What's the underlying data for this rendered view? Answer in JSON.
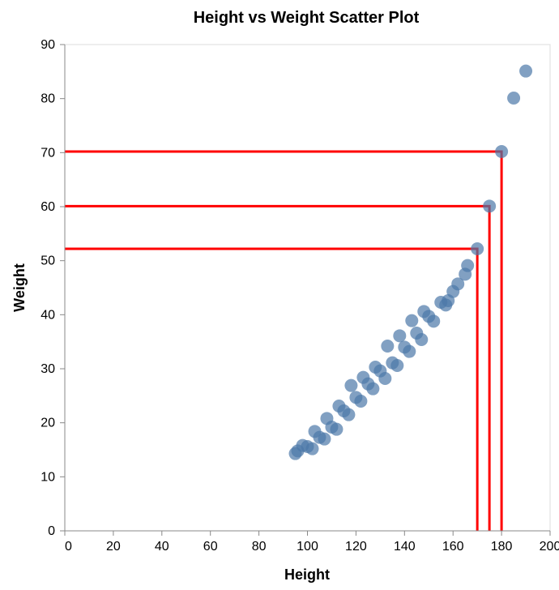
{
  "chart_data": {
    "type": "scatter",
    "title": "Height vs Weight Scatter Plot",
    "xlabel": "Height",
    "ylabel": "Weight",
    "xlim": [
      0,
      200
    ],
    "ylim": [
      0,
      90
    ],
    "xticks": [
      0,
      20,
      40,
      60,
      80,
      100,
      120,
      140,
      160,
      180,
      200
    ],
    "yticks": [
      0,
      10,
      20,
      30,
      40,
      50,
      60,
      70,
      80,
      90
    ],
    "grid": false,
    "color": "#4c78a8",
    "points": [
      {
        "x": 95,
        "y": 14.3
      },
      {
        "x": 96,
        "y": 14.8
      },
      {
        "x": 98,
        "y": 15.8
      },
      {
        "x": 100,
        "y": 15.6
      },
      {
        "x": 102,
        "y": 15.2
      },
      {
        "x": 103,
        "y": 18.4
      },
      {
        "x": 105,
        "y": 17.3
      },
      {
        "x": 107,
        "y": 17.0
      },
      {
        "x": 108,
        "y": 20.8
      },
      {
        "x": 110,
        "y": 19.2
      },
      {
        "x": 112,
        "y": 18.8
      },
      {
        "x": 113,
        "y": 23.1
      },
      {
        "x": 115,
        "y": 22.2
      },
      {
        "x": 117,
        "y": 21.5
      },
      {
        "x": 118,
        "y": 26.9
      },
      {
        "x": 120,
        "y": 24.7
      },
      {
        "x": 122,
        "y": 24.0
      },
      {
        "x": 123,
        "y": 28.4
      },
      {
        "x": 125,
        "y": 27.2
      },
      {
        "x": 127,
        "y": 26.3
      },
      {
        "x": 128,
        "y": 30.3
      },
      {
        "x": 130,
        "y": 29.6
      },
      {
        "x": 132,
        "y": 28.2
      },
      {
        "x": 133,
        "y": 34.2
      },
      {
        "x": 135,
        "y": 31.1
      },
      {
        "x": 137,
        "y": 30.6
      },
      {
        "x": 138,
        "y": 36.1
      },
      {
        "x": 140,
        "y": 34.0
      },
      {
        "x": 142,
        "y": 33.2
      },
      {
        "x": 143,
        "y": 38.9
      },
      {
        "x": 145,
        "y": 36.6
      },
      {
        "x": 147,
        "y": 35.4
      },
      {
        "x": 148,
        "y": 40.6
      },
      {
        "x": 150,
        "y": 39.7
      },
      {
        "x": 152,
        "y": 38.8
      },
      {
        "x": 155,
        "y": 42.3
      },
      {
        "x": 157,
        "y": 41.8
      },
      {
        "x": 158,
        "y": 42.6
      },
      {
        "x": 160,
        "y": 44.3
      },
      {
        "x": 162,
        "y": 45.7
      },
      {
        "x": 165,
        "y": 47.5
      },
      {
        "x": 166,
        "y": 49.1
      },
      {
        "x": 170,
        "y": 52.2
      },
      {
        "x": 175,
        "y": 60.1
      },
      {
        "x": 180,
        "y": 70.2
      },
      {
        "x": 185,
        "y": 80.1
      },
      {
        "x": 190,
        "y": 85.1
      }
    ],
    "reference_lines": [
      {
        "x": 170,
        "y": 52.2
      },
      {
        "x": 175,
        "y": 60.1
      },
      {
        "x": 180,
        "y": 70.2
      }
    ],
    "reference_line_color": "#ff0000"
  }
}
